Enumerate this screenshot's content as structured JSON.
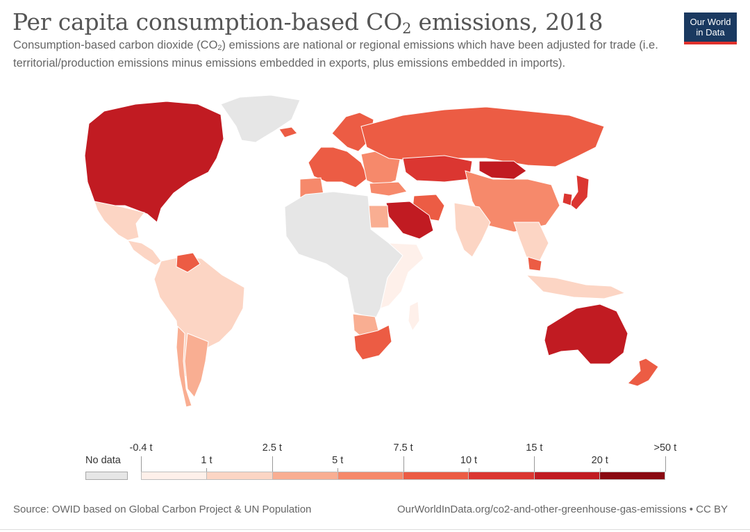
{
  "header": {
    "title_main": "Per capita consumption-based CO",
    "title_sub": "2",
    "title_end": " emissions, 2018",
    "subtitle_a": "Consumption-based carbon dioxide (CO",
    "subtitle_sub": "2",
    "subtitle_b": ") emissions are national or regional emissions which have been adjusted for trade (i.e. territorial/production emissions minus emissions embedded in exports, plus emissions embedded in imports)."
  },
  "logo": {
    "line1": "Our World",
    "line2": "in Data",
    "bg": "#1a3960",
    "accent": "#e0312c"
  },
  "legend": {
    "no_data_label": "No data",
    "no_data_color": "#e6e6e6",
    "upper_ticks": [
      "-0.4 t",
      "2.5 t",
      "7.5 t",
      "15 t",
      ">50 t"
    ],
    "lower_ticks": [
      "1 t",
      "5 t",
      "10 t",
      "20 t"
    ],
    "bins": [
      "#fef0ea",
      "#fcd5c4",
      "#f9ae92",
      "#f6896b",
      "#ec5c44",
      "#db3631",
      "#c11b22",
      "#8a0a12"
    ]
  },
  "regions": [
    {
      "name": "North America",
      "bin": 6
    },
    {
      "name": "Greenland",
      "bin": -1
    },
    {
      "name": "Mexico",
      "bin": 1
    },
    {
      "name": "Central America",
      "bin": 1
    },
    {
      "name": "South America",
      "bin": 1
    },
    {
      "name": "Venezuela",
      "bin": 4
    },
    {
      "name": "Argentina",
      "bin": 2
    },
    {
      "name": "Chile",
      "bin": 2
    },
    {
      "name": "Iceland",
      "bin": 4
    },
    {
      "name": "Scandinavia",
      "bin": 4
    },
    {
      "name": "Western Europe",
      "bin": 4
    },
    {
      "name": "Iberia",
      "bin": 3
    },
    {
      "name": "Eastern Europe",
      "bin": 3
    },
    {
      "name": "Russia",
      "bin": 4
    },
    {
      "name": "Kazakhstan",
      "bin": 5
    },
    {
      "name": "Mongolia",
      "bin": 6
    },
    {
      "name": "China",
      "bin": 3
    },
    {
      "name": "Japan",
      "bin": 5
    },
    {
      "name": "South Korea",
      "bin": 5
    },
    {
      "name": "India",
      "bin": 1
    },
    {
      "name": "Southeast Asia",
      "bin": 1
    },
    {
      "name": "Malaysia",
      "bin": 4
    },
    {
      "name": "Indonesia",
      "bin": 1
    },
    {
      "name": "Iran",
      "bin": 4
    },
    {
      "name": "Saudi Arabia",
      "bin": 6
    },
    {
      "name": "Turkey",
      "bin": 3
    },
    {
      "name": "Egypt",
      "bin": 2
    },
    {
      "name": "Sahara and Central Africa",
      "bin": -1
    },
    {
      "name": "Sub-Saharan Africa",
      "bin": 0
    },
    {
      "name": "Namibia and Botswana",
      "bin": 2
    },
    {
      "name": "South Africa",
      "bin": 4
    },
    {
      "name": "Madagascar",
      "bin": 0
    },
    {
      "name": "Australia",
      "bin": 6
    },
    {
      "name": "New Zealand",
      "bin": 4
    }
  ],
  "footer": {
    "source": "Source: OWID based on Global Carbon Project & UN Population",
    "credit": "OurWorldInData.org/co2-and-other-greenhouse-gas-emissions • CC BY"
  }
}
